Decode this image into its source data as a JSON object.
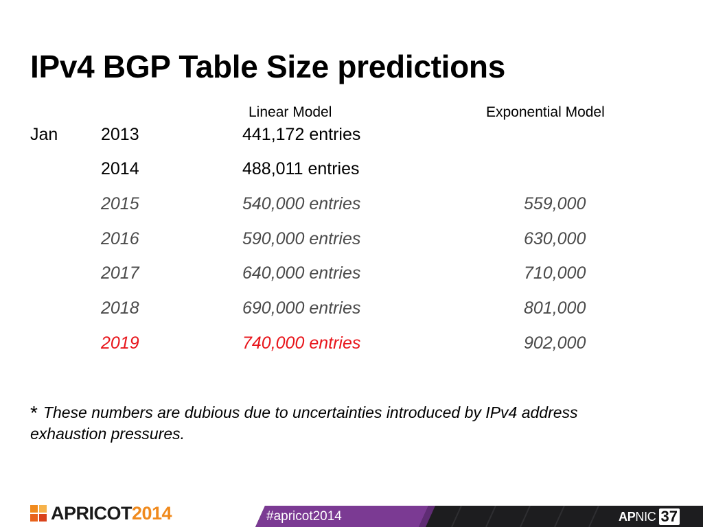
{
  "slide": {
    "title": "IPv4 BGP Table Size predictions",
    "columns": {
      "linear": "Linear Model",
      "exponential": "Exponential Model"
    },
    "rows": [
      {
        "month": "Jan",
        "year": "2013",
        "linear": "441,172 entries",
        "exponential": ""
      },
      {
        "month": "",
        "year": "2014",
        "linear": "488,011 entries",
        "exponential": ""
      },
      {
        "month": "",
        "year": "2015",
        "linear": "540,000 entries",
        "exponential": "559,000"
      },
      {
        "month": "",
        "year": "2016",
        "linear": "590,000 entries",
        "exponential": "630,000"
      },
      {
        "month": "",
        "year": "2017",
        "linear": "640,000 entries",
        "exponential": "710,000"
      },
      {
        "month": "",
        "year": "2018",
        "linear": "690,000 entries",
        "exponential": "801,000"
      },
      {
        "month": "",
        "year": "2019",
        "linear": "740,000 entries",
        "exponential": "902,000"
      }
    ],
    "footnote": {
      "marker": "*",
      "text": "These numbers are dubious due to uncertainties introduced by IPv4 address exhaustion pressures."
    }
  },
  "footer": {
    "event_name": "APRICOT",
    "event_year": "2014",
    "hashtag": "#apricot2014",
    "org_prefix": "AP",
    "org_suffix": "NIC",
    "org_number": "37"
  },
  "colors": {
    "highlight": "#e8151b",
    "predicted_text": "#4a4a4a",
    "event_year": "#f08a1d",
    "band_purple": "#7b3a93",
    "band_dark": "#1d1d1f"
  }
}
